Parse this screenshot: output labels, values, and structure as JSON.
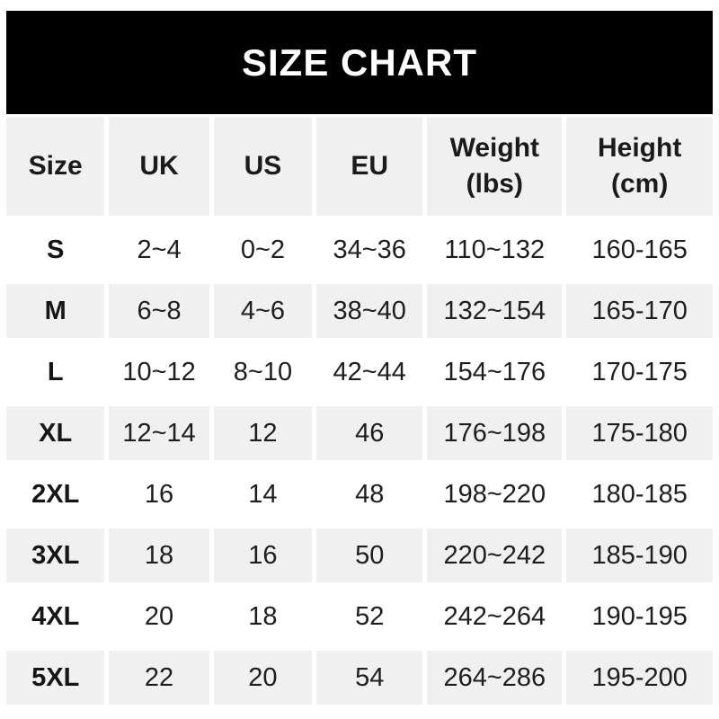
{
  "chart_data": {
    "type": "table",
    "title": "SIZE CHART",
    "columns": [
      {
        "label": "Size",
        "sub": ""
      },
      {
        "label": "UK",
        "sub": ""
      },
      {
        "label": "US",
        "sub": ""
      },
      {
        "label": "EU",
        "sub": ""
      },
      {
        "label": "Weight",
        "sub": "(lbs)"
      },
      {
        "label": "Height",
        "sub": "(cm)"
      }
    ],
    "rows": [
      {
        "size": "S",
        "uk": "2~4",
        "us": "0~2",
        "eu": "34~36",
        "weight": "110~132",
        "height": "160-165"
      },
      {
        "size": "M",
        "uk": "6~8",
        "us": "4~6",
        "eu": "38~40",
        "weight": "132~154",
        "height": "165-170"
      },
      {
        "size": "L",
        "uk": "10~12",
        "us": "8~10",
        "eu": "42~44",
        "weight": "154~176",
        "height": "170-175"
      },
      {
        "size": "XL",
        "uk": "12~14",
        "us": "12",
        "eu": "46",
        "weight": "176~198",
        "height": "175-180"
      },
      {
        "size": "2XL",
        "uk": "16",
        "us": "14",
        "eu": "48",
        "weight": "198~220",
        "height": "180-185"
      },
      {
        "size": "3XL",
        "uk": "18",
        "us": "16",
        "eu": "50",
        "weight": "220~242",
        "height": "185-190"
      },
      {
        "size": "4XL",
        "uk": "20",
        "us": "18",
        "eu": "52",
        "weight": "242~264",
        "height": "190-195"
      },
      {
        "size": "5XL",
        "uk": "22",
        "us": "20",
        "eu": "54",
        "weight": "264~286",
        "height": "195-200"
      }
    ],
    "layout": {
      "legend": "none",
      "grid": "off",
      "row_striping": "white / light-gray alternating, header gray"
    }
  },
  "colors": {
    "banner_bg": "#000000",
    "banner_text": "#ffffff",
    "header_row_bg": "#f0f0f0",
    "stripe_row_bg": "#f0f0f0",
    "plain_row_bg": "#ffffff",
    "text": "#1e1e1e"
  }
}
